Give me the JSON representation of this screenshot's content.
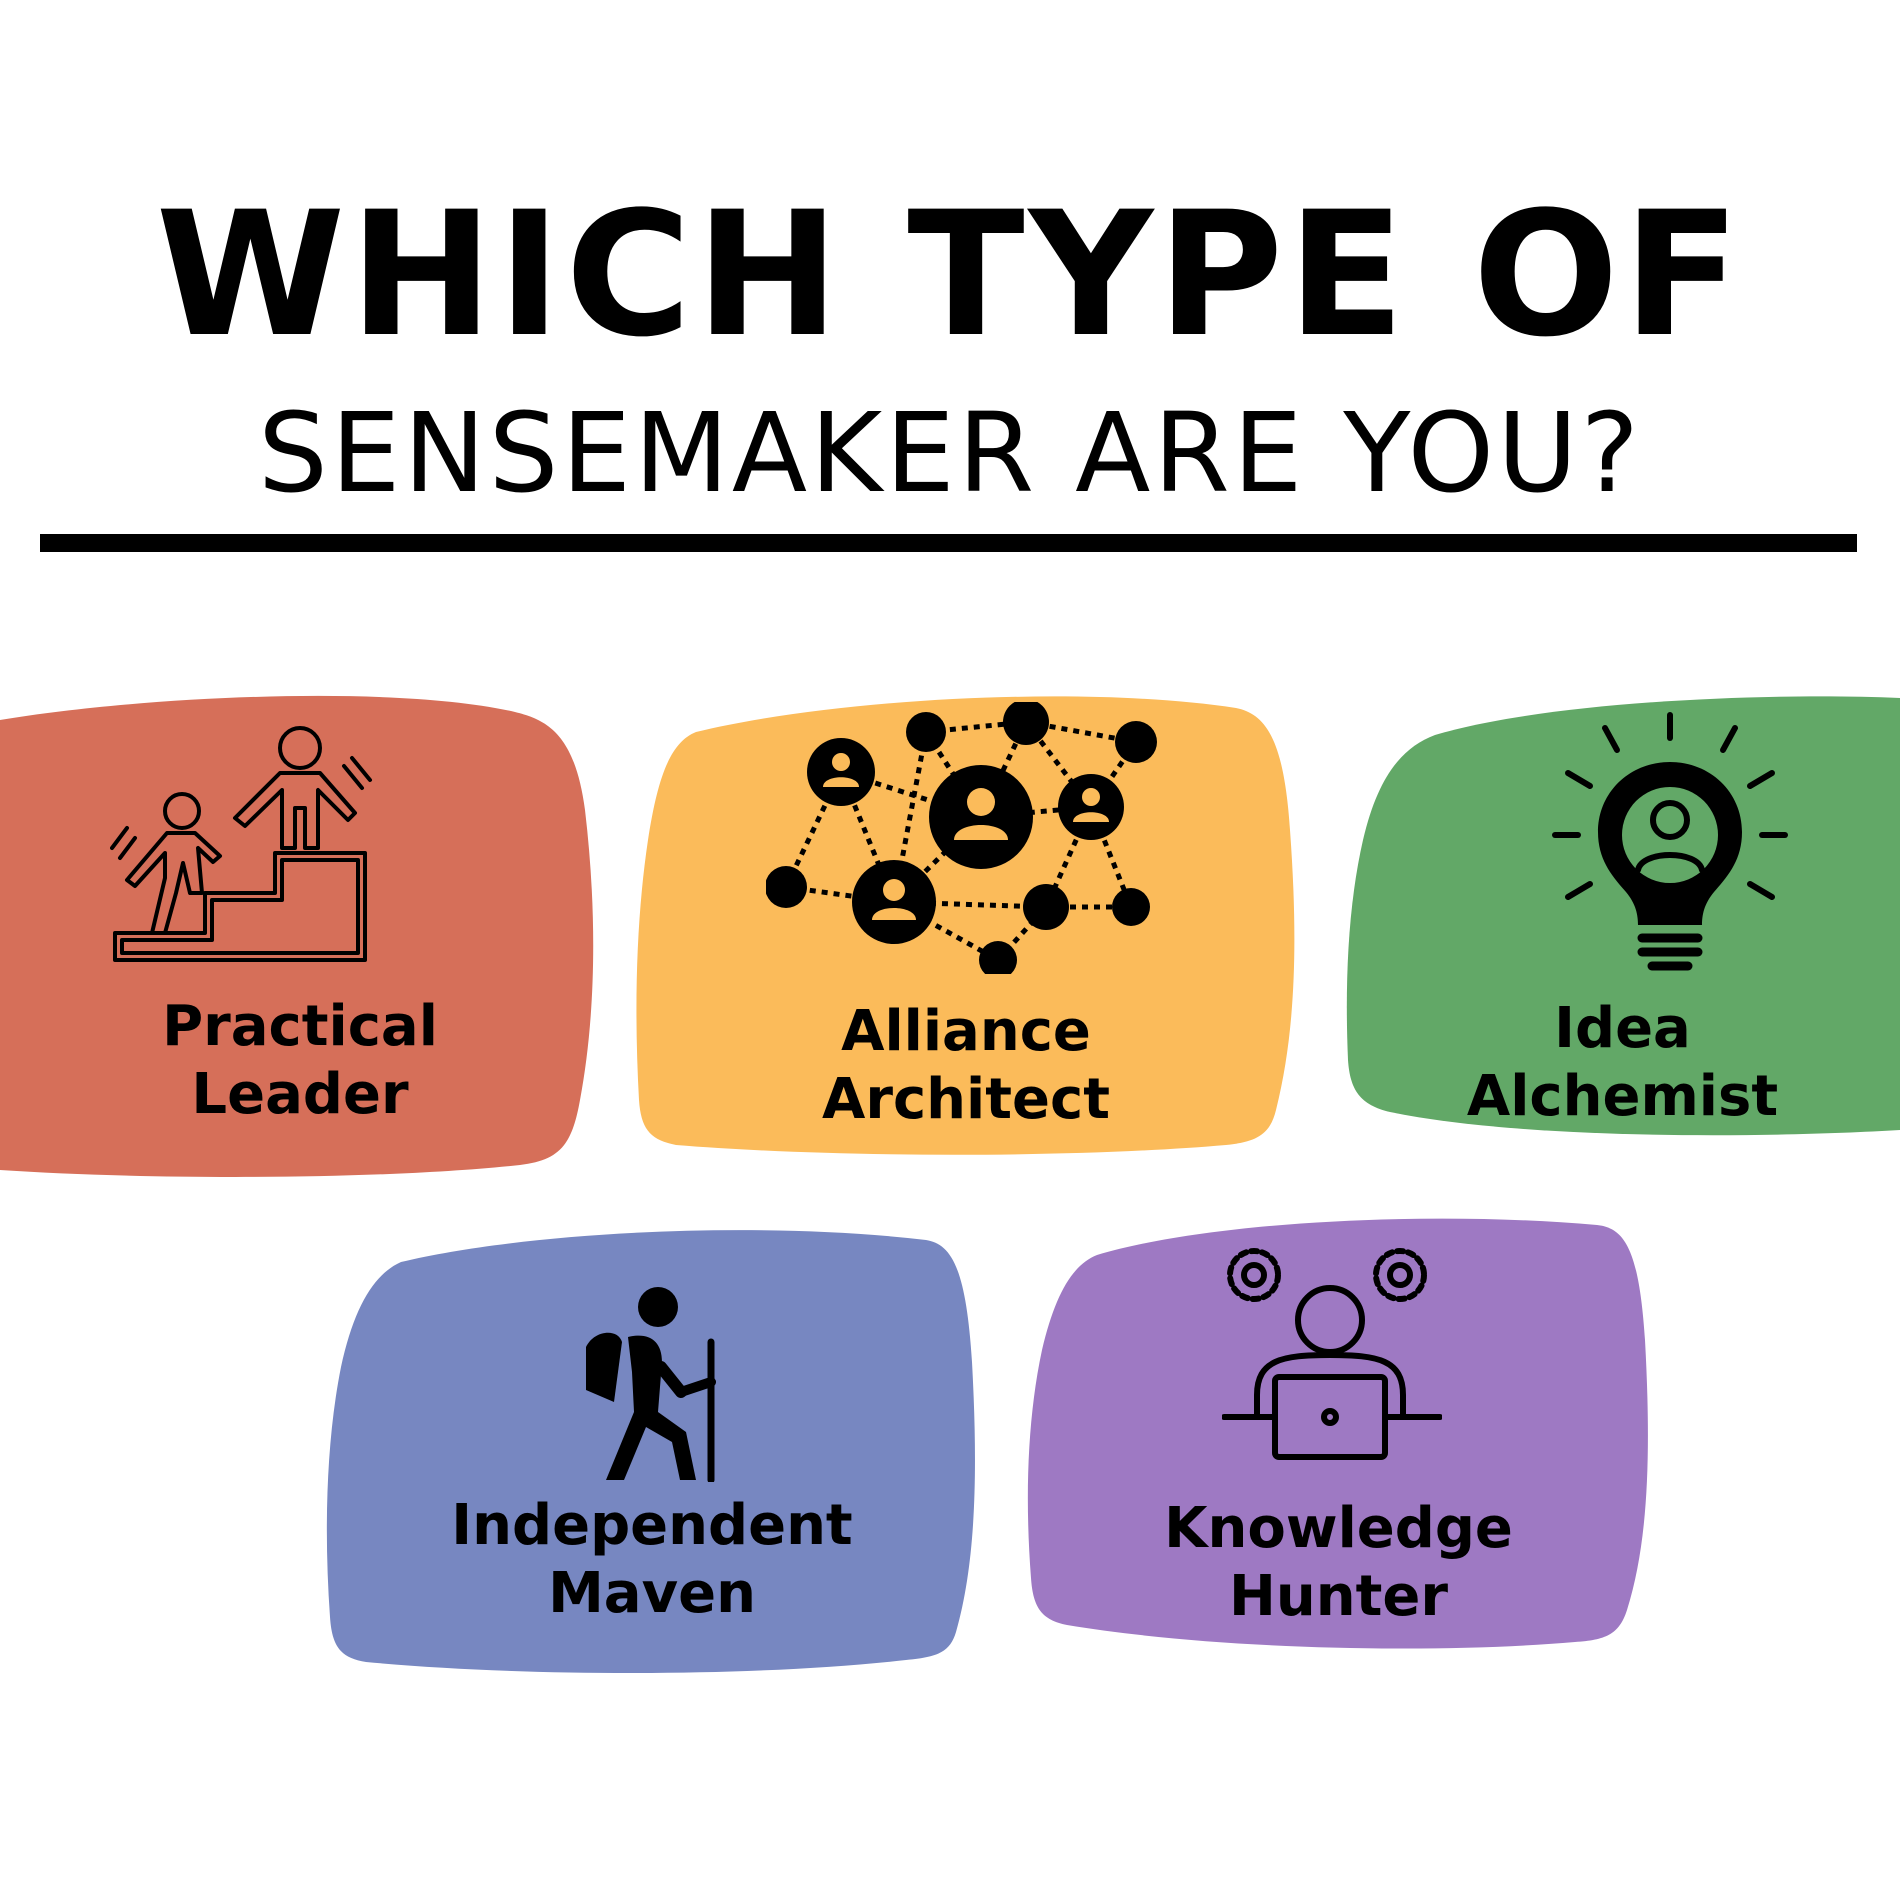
{
  "header": {
    "line1": "WHICH TYPE OF",
    "line2": "SENSEMAKER ARE YOU?"
  },
  "colors": {
    "practical_leader": "#d66f59",
    "alliance_architect": "#fbbb5a",
    "idea_alchemist": "#62a867",
    "independent_maven": "#7787c1",
    "knowledge_hunter": "#9e79c3"
  },
  "cards": [
    {
      "line1": "Practical",
      "line2": "Leader",
      "icon": "stairs-helping-hand-icon"
    },
    {
      "line1": "Alliance",
      "line2": "Architect",
      "icon": "people-network-icon"
    },
    {
      "line1": "Idea",
      "line2": "Alchemist",
      "icon": "lightbulb-person-icon"
    },
    {
      "line1": "Independent",
      "line2": "Maven",
      "icon": "hiker-icon"
    },
    {
      "line1": "Knowledge",
      "line2": "Hunter",
      "icon": "person-laptop-gears-icon"
    }
  ]
}
